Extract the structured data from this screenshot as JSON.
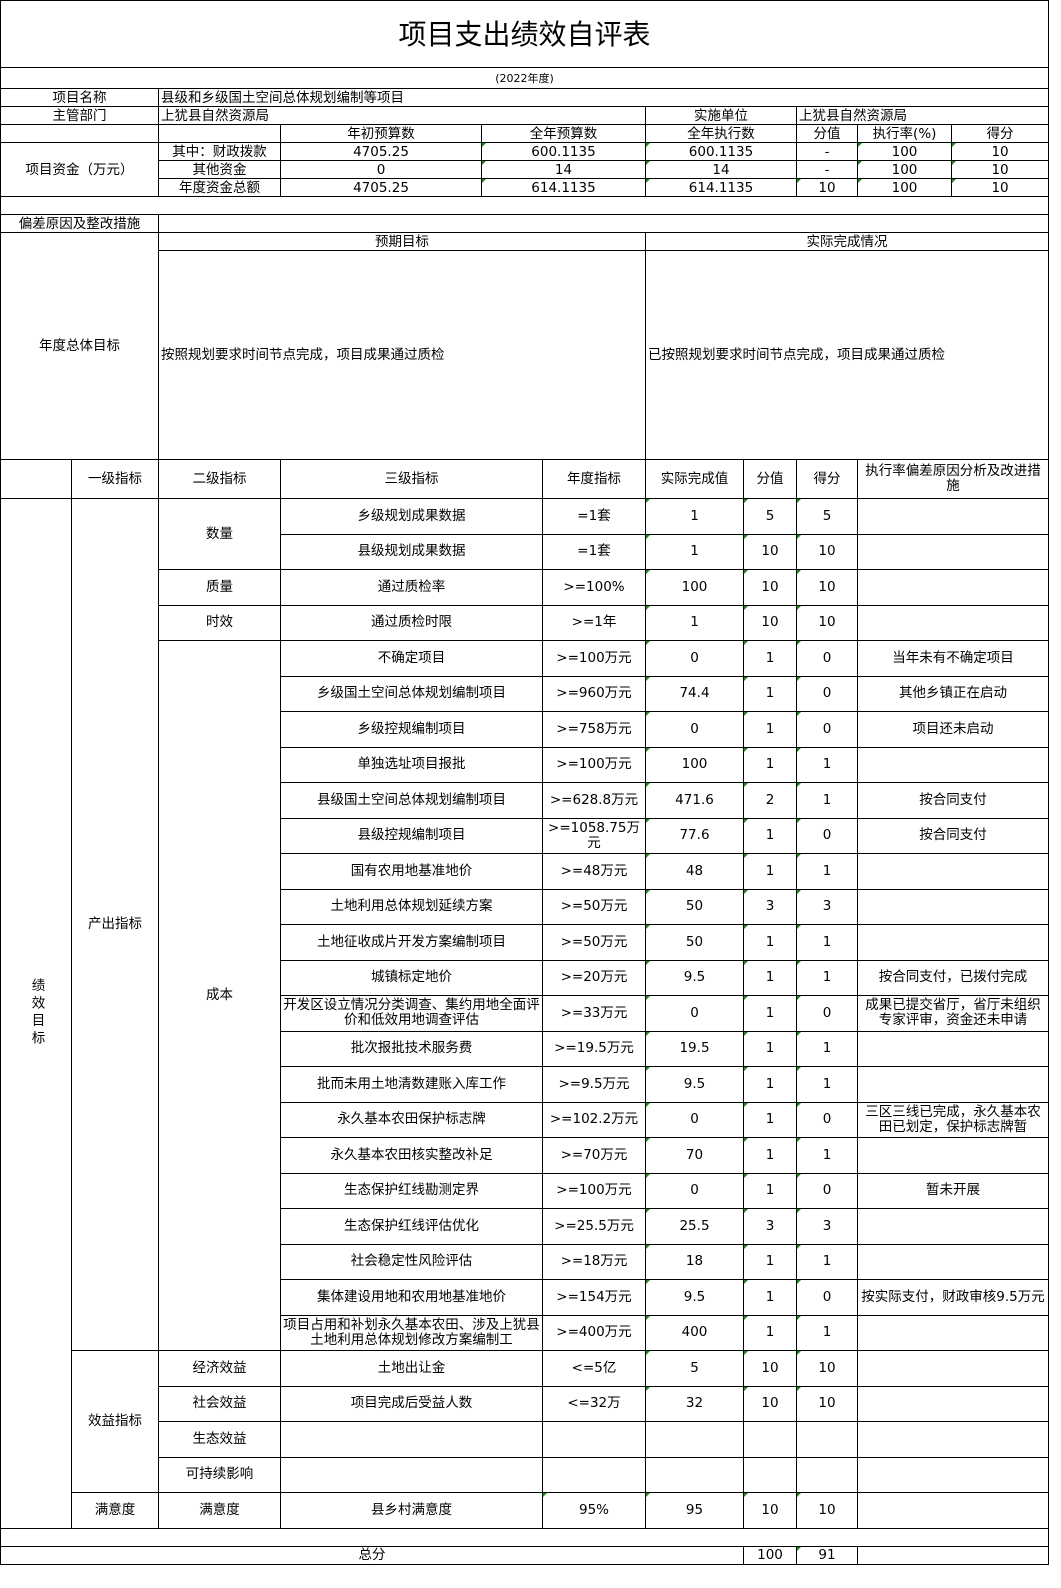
{
  "title": "项目支出绩效自评表",
  "year": "(2022年度)",
  "project": {
    "name_label": "项目名称",
    "name": "县级和乡级国土空间总体规划编制等项目",
    "dept_label": "主管部门",
    "dept": "上犹县自然资源局",
    "impl_label": "实施单位",
    "impl": "上犹县自然资源局"
  },
  "funds": {
    "label": "项目资金（万元）",
    "headers": [
      "年初预算数",
      "全年预算数",
      "全年执行数",
      "分值",
      "执行率(%)",
      "得分"
    ],
    "rows": [
      {
        "label": "其中：财政拨款",
        "initial": "4705.25",
        "annual": "600.1135",
        "executed": "600.1135",
        "score_value": "-",
        "rate": "100",
        "score": "10"
      },
      {
        "label": "其他资金",
        "initial": "0",
        "annual": "14",
        "executed": "14",
        "score_value": "-",
        "rate": "100",
        "score": "10"
      },
      {
        "label": "年度资金总额",
        "initial": "4705.25",
        "annual": "614.1135",
        "executed": "614.1135",
        "score_value": "10",
        "rate": "100",
        "score": "10"
      }
    ]
  },
  "deviation_label": "偏差原因及整改措施",
  "goal": {
    "label": "年度总体目标",
    "expected_label": "预期目标",
    "actual_label": "实际完成情况",
    "expected": "按照规划要求时间节点完成，项目成果通过质检",
    "actual": "已按照规划要求时间节点完成，项目成果通过质检"
  },
  "ind_headers": {
    "l1": "一级指标",
    "l2": "二级指标",
    "l3": "三级指标",
    "target": "年度指标",
    "actual": "实际完成值",
    "score_value": "分值",
    "score": "得分",
    "note": "执行率偏差原因分析及改进措施"
  },
  "perf_label": "绩效目标",
  "indicators": [
    {
      "level1": "产出指标",
      "groups": [
        {
          "level2": "数量",
          "items": [
            {
              "name": "乡级规划成果数据",
              "target": "=1套",
              "actual": "1",
              "score_value": "5",
              "score": "5",
              "note": ""
            },
            {
              "name": "县级规划成果数据",
              "target": "=1套",
              "actual": "1",
              "score_value": "10",
              "score": "10",
              "note": ""
            }
          ]
        },
        {
          "level2": "质量",
          "items": [
            {
              "name": "通过质检率",
              "target": ">=100%",
              "actual": "100",
              "score_value": "10",
              "score": "10",
              "note": ""
            }
          ]
        },
        {
          "level2": "时效",
          "items": [
            {
              "name": "通过质检时限",
              "target": ">=1年",
              "actual": "1",
              "score_value": "10",
              "score": "10",
              "note": ""
            }
          ]
        },
        {
          "level2": "成本",
          "items": [
            {
              "name": "不确定项目",
              "target": ">=100万元",
              "actual": "0",
              "score_value": "1",
              "score": "0",
              "note": "当年未有不确定项目"
            },
            {
              "name": "乡级国土空间总体规划编制项目",
              "target": ">=960万元",
              "actual": "74.4",
              "score_value": "1",
              "score": "0",
              "note": "其他乡镇正在启动"
            },
            {
              "name": "乡级控规编制项目",
              "target": ">=758万元",
              "actual": "0",
              "score_value": "1",
              "score": "0",
              "note": "项目还未启动"
            },
            {
              "name": "单独选址项目报批",
              "target": ">=100万元",
              "actual": "100",
              "score_value": "1",
              "score": "1",
              "note": ""
            },
            {
              "name": "县级国土空间总体规划编制项目",
              "target": ">=628.8万元",
              "actual": "471.6",
              "score_value": "2",
              "score": "1",
              "note": "按合同支付"
            },
            {
              "name": "县级控规编制项目",
              "target": ">=1058.75万元",
              "actual": "77.6",
              "score_value": "1",
              "score": "0",
              "note": "按合同支付"
            },
            {
              "name": "国有农用地基准地价",
              "target": ">=48万元",
              "actual": "48",
              "score_value": "1",
              "score": "1",
              "note": ""
            },
            {
              "name": "土地利用总体规划延续方案",
              "target": ">=50万元",
              "actual": "50",
              "score_value": "3",
              "score": "3",
              "note": ""
            },
            {
              "name": "土地征收成片开发方案编制项目",
              "target": ">=50万元",
              "actual": "50",
              "score_value": "1",
              "score": "1",
              "note": ""
            },
            {
              "name": "城镇标定地价",
              "target": ">=20万元",
              "actual": "9.5",
              "score_value": "1",
              "score": "1",
              "note": "按合同支付，已拨付完成"
            },
            {
              "name": "开发区设立情况分类调查、集约用地全面评价和低效用地调查评估",
              "target": ">=33万元",
              "actual": "0",
              "score_value": "1",
              "score": "0",
              "note": "成果已提交省厅，省厅未组织专家评审，资金还未申请"
            },
            {
              "name": "批次报批技术服务费",
              "target": ">=19.5万元",
              "actual": "19.5",
              "score_value": "1",
              "score": "1",
              "note": ""
            },
            {
              "name": "批而未用土地清数建账入库工作",
              "target": ">=9.5万元",
              "actual": "9.5",
              "score_value": "1",
              "score": "1",
              "note": ""
            },
            {
              "name": "永久基本农田保护标志牌",
              "target": ">=102.2万元",
              "actual": "0",
              "score_value": "1",
              "score": "0",
              "note": "三区三线已完成，永久基本农田已划定，保护标志牌暂"
            },
            {
              "name": "永久基本农田核实整改补足",
              "target": ">=70万元",
              "actual": "70",
              "score_value": "1",
              "score": "1",
              "note": ""
            },
            {
              "name": "生态保护红线勘测定界",
              "target": ">=100万元",
              "actual": "0",
              "score_value": "1",
              "score": "0",
              "note": "暂未开展"
            },
            {
              "name": "生态保护红线评估优化",
              "target": ">=25.5万元",
              "actual": "25.5",
              "score_value": "3",
              "score": "3",
              "note": ""
            },
            {
              "name": "社会稳定性风险评估",
              "target": ">=18万元",
              "actual": "18",
              "score_value": "1",
              "score": "1",
              "note": ""
            },
            {
              "name": "集体建设用地和农用地基准地价",
              "target": ">=154万元",
              "actual": "9.5",
              "score_value": "1",
              "score": "0",
              "note": "按实际支付，财政审核9.5万元"
            },
            {
              "name": "项目占用和补划永久基本农田、涉及上犹县土地利用总体规划修改方案编制工",
              "target": ">=400万元",
              "actual": "400",
              "score_value": "1",
              "score": "1",
              "note": ""
            }
          ]
        }
      ]
    },
    {
      "level1": "效益指标",
      "groups": [
        {
          "level2": "经济效益",
          "items": [
            {
              "name": "土地出让金",
              "target": "<=5亿",
              "actual": "5",
              "score_value": "10",
              "score": "10",
              "note": ""
            }
          ]
        },
        {
          "level2": "社会效益",
          "items": [
            {
              "name": "项目完成后受益人数",
              "target": "<=32万",
              "actual": "32",
              "score_value": "10",
              "score": "10",
              "note": ""
            }
          ]
        },
        {
          "level2": "生态效益",
          "items": [
            {
              "name": "",
              "target": "",
              "actual": "",
              "score_value": "",
              "score": "",
              "note": ""
            }
          ]
        },
        {
          "level2": "可持续影响",
          "items": [
            {
              "name": "",
              "target": "",
              "actual": "",
              "score_value": "",
              "score": "",
              "note": ""
            }
          ]
        }
      ]
    },
    {
      "level1": "满意度",
      "groups": [
        {
          "level2": "满意度",
          "items": [
            {
              "name": "县乡村满意度",
              "target": "95%",
              "actual": "95",
              "score_value": "10",
              "score": "10",
              "note": ""
            }
          ]
        }
      ]
    }
  ],
  "total": {
    "label": "总分",
    "score_value": "100",
    "score": "91"
  }
}
